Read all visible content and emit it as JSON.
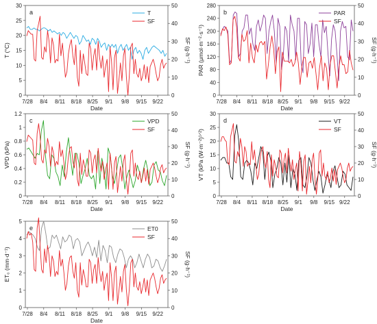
{
  "chart_data": [
    {
      "type": "line",
      "panel_label": "a",
      "x_tick_labels": [
        "7/28",
        "8/4",
        "8/11",
        "8/18",
        "8/25",
        "9/1",
        "9/8",
        "9/15",
        "9/22"
      ],
      "xlabel": "Date",
      "ylabel": "T (°C)",
      "ylim": [
        0,
        30
      ],
      "yticks": [
        0,
        5,
        10,
        15,
        20,
        25,
        30
      ],
      "y2label": "SF (g·h⁻¹)",
      "y2lim": [
        0,
        50
      ],
      "y2ticks": [
        0,
        10,
        20,
        30,
        40,
        50
      ],
      "legend_position": "top-right",
      "series": [
        {
          "name": "T",
          "color": "#29ABE2",
          "axis": "left",
          "values": [
            22.5,
            23,
            22,
            22,
            22.5,
            22,
            22,
            21.5,
            22,
            22.5,
            22.5,
            22,
            21.5,
            22,
            21,
            21.5,
            21,
            20.5,
            21,
            20,
            21,
            20.5,
            19,
            20,
            21,
            20,
            19,
            20,
            19.5,
            17,
            18,
            20,
            19,
            18,
            18.5,
            17,
            19,
            18.5,
            17,
            19,
            18,
            16,
            17,
            17.5,
            15,
            17,
            16,
            17,
            16,
            17,
            14,
            16,
            17,
            15,
            16,
            17,
            15,
            16,
            12,
            15,
            16,
            14,
            15,
            14,
            12,
            15,
            16,
            14,
            15,
            16,
            16.5,
            16,
            15.5,
            15,
            14,
            15,
            13,
            14
          ]
        },
        {
          "name": "SF",
          "color": "#E8262B",
          "axis": "right",
          "values": [
            33,
            36,
            35,
            34,
            34,
            20,
            19,
            36,
            40,
            44,
            21,
            20,
            27,
            24,
            36,
            30,
            18,
            32,
            28,
            18,
            20,
            19,
            34,
            22,
            29,
            19,
            10,
            13,
            23,
            28,
            31,
            22,
            17,
            28,
            10,
            5,
            25,
            12,
            23,
            18,
            12,
            11,
            29,
            26,
            14,
            22,
            26,
            14,
            30,
            21,
            15,
            22,
            10,
            16,
            20,
            2,
            27,
            19,
            3,
            21,
            25,
            1,
            9,
            18,
            8,
            22,
            26,
            10,
            0,
            11,
            27,
            29,
            12,
            20,
            12,
            10,
            15,
            8,
            11,
            17,
            9,
            16,
            7,
            16,
            18,
            20,
            17,
            12,
            8,
            10,
            17,
            20,
            15,
            17,
            18
          ]
        }
      ]
    },
    {
      "type": "line",
      "panel_label": "b",
      "x_tick_labels": [
        "7/28",
        "8/4",
        "8/11",
        "8/18",
        "8/25",
        "9/1",
        "9/8",
        "9/15",
        "9/22"
      ],
      "xlabel": "Date",
      "ylabel": "PAR (μmol·m⁻²·s⁻¹)",
      "ylim": [
        0,
        280
      ],
      "yticks": [
        0,
        40,
        80,
        120,
        160,
        200,
        240,
        280
      ],
      "y2label": "SF (g·h⁻¹)",
      "y2lim": [
        0,
        50
      ],
      "y2ticks": [
        0,
        10,
        20,
        30,
        40,
        50
      ],
      "legend_position": "top-right",
      "series": [
        {
          "name": "PAR",
          "color": "#8C3F99",
          "axis": "left",
          "values": [
            190,
            205,
            215,
            210,
            200,
            100,
            110,
            250,
            260,
            255,
            120,
            130,
            200,
            210,
            250,
            250,
            190,
            210,
            160,
            140,
            215,
            235,
            200,
            220,
            250,
            240,
            130,
            200,
            230,
            250,
            200,
            100,
            240,
            215,
            80,
            125,
            215,
            200,
            105,
            250,
            220,
            200,
            110,
            240,
            240,
            100,
            70,
            230,
            220,
            130,
            160,
            225,
            120,
            220,
            220,
            160,
            120,
            235,
            195,
            215,
            130,
            60,
            175,
            220,
            200,
            130,
            45,
            200,
            230,
            210,
            215,
            120,
            110,
            235,
            200
          ]
        },
        {
          "name": "SF",
          "color": "#E8262B",
          "axis": "right",
          "values": [
            33,
            37,
            36,
            38,
            34,
            17,
            18,
            42,
            44,
            38,
            21,
            19,
            34,
            30,
            31,
            36,
            18,
            29,
            21,
            18,
            28,
            24,
            29,
            30,
            28,
            30,
            9,
            17,
            27,
            33,
            26,
            12,
            24,
            27,
            2,
            24,
            19,
            19,
            19,
            18,
            20,
            16,
            18,
            24,
            18,
            6,
            16,
            21,
            21,
            10,
            18,
            19,
            15,
            21,
            12,
            3,
            15,
            22,
            8,
            18,
            15,
            3,
            17,
            22,
            22,
            13,
            4,
            15,
            22,
            17,
            17,
            12,
            13,
            25,
            18,
            14
          ]
        }
      ]
    },
    {
      "type": "line",
      "panel_label": "c",
      "x_tick_labels": [
        "7/28",
        "8/4",
        "8/11",
        "8/18",
        "8/25",
        "9/1",
        "9/8",
        "9/15",
        "9/22"
      ],
      "xlabel": "Date",
      "ylabel": "VPD (kPa)",
      "ylim": [
        0,
        1.2
      ],
      "yticks": [
        0,
        0.2,
        0.4,
        0.6,
        0.8,
        1.0,
        1.2
      ],
      "y2label": "SF (g·h⁻¹)",
      "y2lim": [
        0,
        50
      ],
      "y2ticks": [
        0,
        10,
        20,
        30,
        40,
        50
      ],
      "legend_position": "top-right",
      "series": [
        {
          "name": "VPD",
          "color": "#2AA52A",
          "axis": "left",
          "values": [
            0.68,
            0.7,
            0.65,
            0.6,
            0.55,
            0.62,
            0.6,
            0.95,
            1.1,
            0.58,
            0.3,
            0.25,
            0.6,
            0.55,
            0.35,
            0.28,
            0.15,
            0.45,
            0.28,
            0.65,
            0.85,
            0.55,
            0.3,
            0.62,
            0.62,
            0.48,
            0.18,
            0.3,
            0.4,
            0.55,
            0.3,
            0.25,
            0.3,
            0.1,
            0.65,
            0.18,
            0.55,
            0.4,
            0.1,
            0.7,
            0.6,
            0.3,
            0.18,
            0.35,
            0.55,
            0.6,
            0.4,
            0.1,
            0.28,
            0.38,
            0.25,
            0.12,
            0.22,
            0.45,
            0.35,
            0.2,
            0.4,
            0.52,
            0.38,
            0.15,
            0.2,
            0.45,
            0.5,
            0.38,
            0.35,
            0.22,
            0.15,
            0.3
          ]
        },
        {
          "name": "SF",
          "color": "#E8262B",
          "axis": "right",
          "values": [
            33,
            37,
            36,
            35,
            34,
            20,
            19,
            38,
            44,
            36,
            22,
            20,
            28,
            26,
            35,
            30,
            18,
            30,
            26,
            18,
            21,
            19,
            33,
            24,
            28,
            20,
            10,
            14,
            24,
            29,
            30,
            21,
            17,
            26,
            10,
            6,
            26,
            13,
            22,
            18,
            12,
            12,
            28,
            26,
            14,
            22,
            25,
            14,
            29,
            21,
            15,
            21,
            10,
            16,
            20,
            4,
            26,
            18,
            4,
            20,
            24,
            2,
            10,
            18,
            9,
            21,
            25,
            10,
            1,
            11,
            26,
            28,
            12,
            20,
            12,
            10,
            15,
            8,
            12,
            17,
            9,
            16,
            7,
            16,
            18,
            20,
            17,
            12,
            8,
            11,
            17,
            19,
            14,
            16,
            17
          ]
        }
      ]
    },
    {
      "type": "line",
      "panel_label": "d",
      "x_tick_labels": [
        "7/28",
        "8/4",
        "8/11",
        "8/18",
        "8/25",
        "9/1",
        "9/8",
        "9/15",
        "9/22"
      ],
      "xlabel": "Date",
      "ylabel": "VT (kPa (W·m⁻²)¹ᐟ²)",
      "ylim": [
        0,
        30
      ],
      "yticks": [
        0,
        5,
        10,
        15,
        20,
        25,
        30
      ],
      "y2label": "SF (g·h⁻¹)",
      "y2lim": [
        0,
        50
      ],
      "y2ticks": [
        0,
        10,
        20,
        30,
        40,
        50
      ],
      "legend_position": "top-right",
      "series": [
        {
          "name": "VT",
          "color": "#1A1A1A",
          "axis": "left",
          "values": [
            13,
            14,
            14,
            12,
            12,
            7,
            6,
            22,
            26,
            20,
            7,
            6,
            12,
            13,
            12,
            9,
            4,
            12,
            10,
            14,
            18,
            16,
            6,
            14,
            16,
            13,
            3,
            8,
            10,
            14,
            12,
            4,
            12,
            5,
            15,
            3,
            10,
            8,
            2,
            13,
            14,
            4,
            3,
            7,
            14,
            12,
            6,
            2,
            6,
            9,
            7,
            1,
            4,
            8,
            6,
            3,
            9,
            11,
            7,
            3,
            4,
            9,
            8,
            4,
            3,
            2,
            7
          ]
        },
        {
          "name": "SF",
          "color": "#E8262B",
          "axis": "right",
          "values": [
            33,
            36,
            36,
            34,
            33,
            20,
            19,
            36,
            40,
            44,
            21,
            20,
            27,
            24,
            35,
            30,
            18,
            30,
            27,
            18,
            20,
            19,
            33,
            22,
            28,
            19,
            10,
            13,
            23,
            28,
            30,
            21,
            17,
            27,
            10,
            5,
            25,
            12,
            22,
            18,
            12,
            11,
            28,
            26,
            14,
            22,
            26,
            14,
            29,
            21,
            15,
            22,
            10,
            16,
            20,
            3,
            27,
            19,
            3,
            21,
            25,
            1,
            9,
            18,
            8,
            22,
            26,
            10,
            1,
            11,
            26,
            28,
            12,
            20,
            12,
            10,
            15,
            8,
            11,
            17,
            9,
            16,
            7,
            16,
            18,
            20,
            17,
            12,
            8,
            10,
            17,
            20,
            15,
            17,
            18
          ]
        }
      ]
    },
    {
      "type": "line",
      "panel_label": "e",
      "x_tick_labels": [
        "7/28",
        "8/4",
        "8/11",
        "8/18",
        "8/25",
        "9/1",
        "9/8",
        "9/15",
        "9/22"
      ],
      "xlabel": "Date",
      "ylabel": "ET₀ (mm·d⁻¹)",
      "ylim": [
        0,
        5
      ],
      "yticks": [
        0,
        1,
        2,
        3,
        4,
        5
      ],
      "y2label": "SF (g·h⁻¹)",
      "y2lim": [
        0,
        50
      ],
      "y2ticks": [
        0,
        10,
        20,
        30,
        40,
        50
      ],
      "legend_position": "top-right",
      "series": [
        {
          "name": "ET0",
          "color": "#8C8C8C",
          "axis": "left",
          "values": [
            4.2,
            4.4,
            4.3,
            4.2,
            4.0,
            3.5,
            3.3,
            4.6,
            5.0,
            4.3,
            3.4,
            3.5,
            4.2,
            4.0,
            4.2,
            3.8,
            3.4,
            4.1,
            3.8,
            3.9,
            4.2,
            4.1,
            3.4,
            3.9,
            4.0,
            3.8,
            3.0,
            3.3,
            3.6,
            3.8,
            3.5,
            3.0,
            3.5,
            2.9,
            3.9,
            2.7,
            3.6,
            3.3,
            2.6,
            3.6,
            3.5,
            2.9,
            2.6,
            3.1,
            3.4,
            3.3,
            2.9,
            2.3,
            2.8,
            3.0,
            2.8,
            2.3,
            2.6,
            3.1,
            2.7,
            2.3,
            2.8,
            3.1,
            2.9,
            2.3,
            2.4,
            2.8,
            2.7,
            2.3,
            2.1,
            2.4,
            2.8
          ]
        },
        {
          "name": "SF",
          "color": "#E8262B",
          "axis": "right",
          "values": [
            40,
            44,
            42,
            43,
            38,
            22,
            21,
            46,
            52,
            36,
            22,
            20,
            34,
            26,
            36,
            30,
            18,
            30,
            27,
            18,
            21,
            19,
            33,
            24,
            28,
            20,
            10,
            14,
            24,
            29,
            30,
            21,
            17,
            26,
            10,
            6,
            26,
            13,
            22,
            18,
            12,
            12,
            28,
            26,
            14,
            22,
            25,
            14,
            29,
            21,
            15,
            21,
            10,
            16,
            20,
            4,
            26,
            18,
            4,
            20,
            24,
            2,
            10,
            18,
            9,
            21,
            25,
            10,
            1,
            11,
            26,
            28,
            12,
            20,
            12,
            10,
            15,
            8,
            12,
            17,
            9,
            16,
            7,
            16,
            18,
            20,
            17,
            12,
            8,
            11,
            17,
            19,
            14,
            16,
            17
          ]
        }
      ]
    }
  ]
}
